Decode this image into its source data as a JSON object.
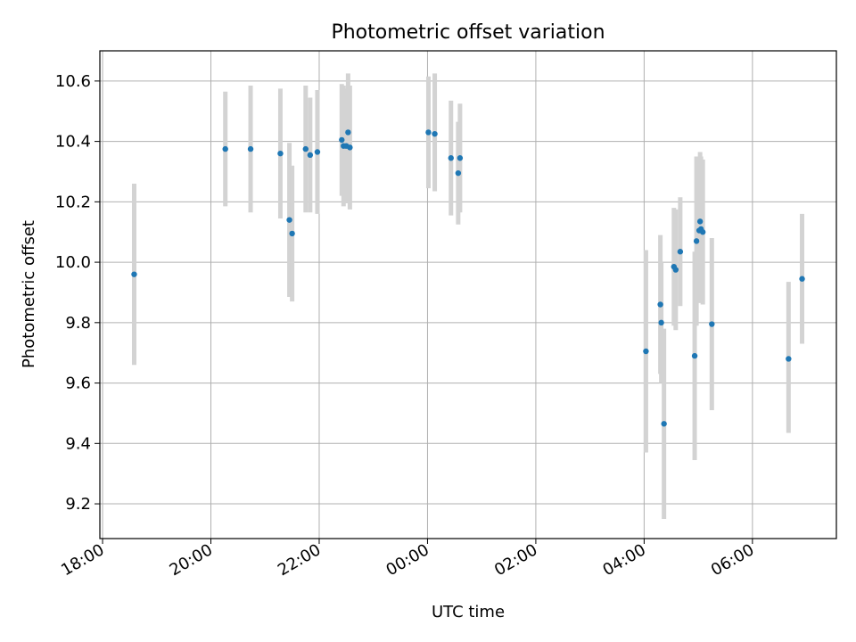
{
  "chart_data": {
    "type": "scatter",
    "title": "Photometric offset variation",
    "xlabel": "UTC time",
    "ylabel": "Photometric offset",
    "x_unit": "UTC",
    "xlim": [
      "17:57",
      "07:33"
    ],
    "ylim": [
      9.085,
      10.7
    ],
    "xticks": [
      "18:00",
      "20:00",
      "22:00",
      "00:00",
      "02:00",
      "04:00",
      "06:00"
    ],
    "yticks": [
      "9.2",
      "9.4",
      "9.6",
      "9.8",
      "10.0",
      "10.2",
      "10.4",
      "10.6"
    ],
    "grid": true,
    "marker_color": "#1f77b4",
    "errorbar_color": "#d3d3d3",
    "points": [
      {
        "x": "18:35",
        "y": 9.96,
        "lo": 9.66,
        "hi": 10.26
      },
      {
        "x": "20:16",
        "y": 10.375,
        "lo": 10.185,
        "hi": 10.565
      },
      {
        "x": "20:44",
        "y": 10.375,
        "lo": 10.165,
        "hi": 10.585
      },
      {
        "x": "21:17",
        "y": 10.36,
        "lo": 10.145,
        "hi": 10.575
      },
      {
        "x": "21:27",
        "y": 10.14,
        "lo": 9.885,
        "hi": 10.395
      },
      {
        "x": "21:30",
        "y": 10.095,
        "lo": 9.87,
        "hi": 10.32
      },
      {
        "x": "21:45",
        "y": 10.375,
        "lo": 10.165,
        "hi": 10.585
      },
      {
        "x": "21:50",
        "y": 10.355,
        "lo": 10.165,
        "hi": 10.545
      },
      {
        "x": "21:58",
        "y": 10.365,
        "lo": 10.16,
        "hi": 10.57
      },
      {
        "x": "22:25",
        "y": 10.405,
        "lo": 10.22,
        "hi": 10.59
      },
      {
        "x": "22:27",
        "y": 10.385,
        "lo": 10.185,
        "hi": 10.585
      },
      {
        "x": "22:30",
        "y": 10.385,
        "lo": 10.195,
        "hi": 10.575
      },
      {
        "x": "22:32",
        "y": 10.43,
        "lo": 10.235,
        "hi": 10.625
      },
      {
        "x": "22:34",
        "y": 10.38,
        "lo": 10.175,
        "hi": 10.585
      },
      {
        "x": "00:01",
        "y": 10.43,
        "lo": 10.245,
        "hi": 10.615
      },
      {
        "x": "00:08",
        "y": 10.425,
        "lo": 10.235,
        "hi": 10.625
      },
      {
        "x": "00:26",
        "y": 10.345,
        "lo": 10.155,
        "hi": 10.535
      },
      {
        "x": "00:34",
        "y": 10.295,
        "lo": 10.125,
        "hi": 10.465
      },
      {
        "x": "00:36",
        "y": 10.345,
        "lo": 10.165,
        "hi": 10.525
      },
      {
        "x": "04:02",
        "y": 9.705,
        "lo": 9.37,
        "hi": 10.04
      },
      {
        "x": "04:18",
        "y": 9.86,
        "lo": 9.63,
        "hi": 10.09
      },
      {
        "x": "04:19",
        "y": 9.8,
        "lo": 9.6,
        "hi": 10.0
      },
      {
        "x": "04:22",
        "y": 9.465,
        "lo": 9.15,
        "hi": 9.78
      },
      {
        "x": "04:33",
        "y": 9.985,
        "lo": 9.79,
        "hi": 10.18
      },
      {
        "x": "04:35",
        "y": 9.975,
        "lo": 9.775,
        "hi": 10.175
      },
      {
        "x": "04:40",
        "y": 10.035,
        "lo": 9.855,
        "hi": 10.215
      },
      {
        "x": "04:56",
        "y": 9.69,
        "lo": 9.345,
        "hi": 10.035
      },
      {
        "x": "04:58",
        "y": 10.07,
        "lo": 9.79,
        "hi": 10.35
      },
      {
        "x": "05:01",
        "y": 10.105,
        "lo": 9.865,
        "hi": 10.345
      },
      {
        "x": "05:02",
        "y": 10.135,
        "lo": 9.905,
        "hi": 10.365
      },
      {
        "x": "05:03",
        "y": 10.11,
        "lo": 9.87,
        "hi": 10.35
      },
      {
        "x": "05:05",
        "y": 10.1,
        "lo": 9.86,
        "hi": 10.34
      },
      {
        "x": "05:15",
        "y": 9.795,
        "lo": 9.51,
        "hi": 10.08
      },
      {
        "x": "06:40",
        "y": 9.68,
        "lo": 9.435,
        "hi": 9.935
      },
      {
        "x": "06:55",
        "y": 9.945,
        "lo": 9.73,
        "hi": 10.16
      }
    ]
  }
}
